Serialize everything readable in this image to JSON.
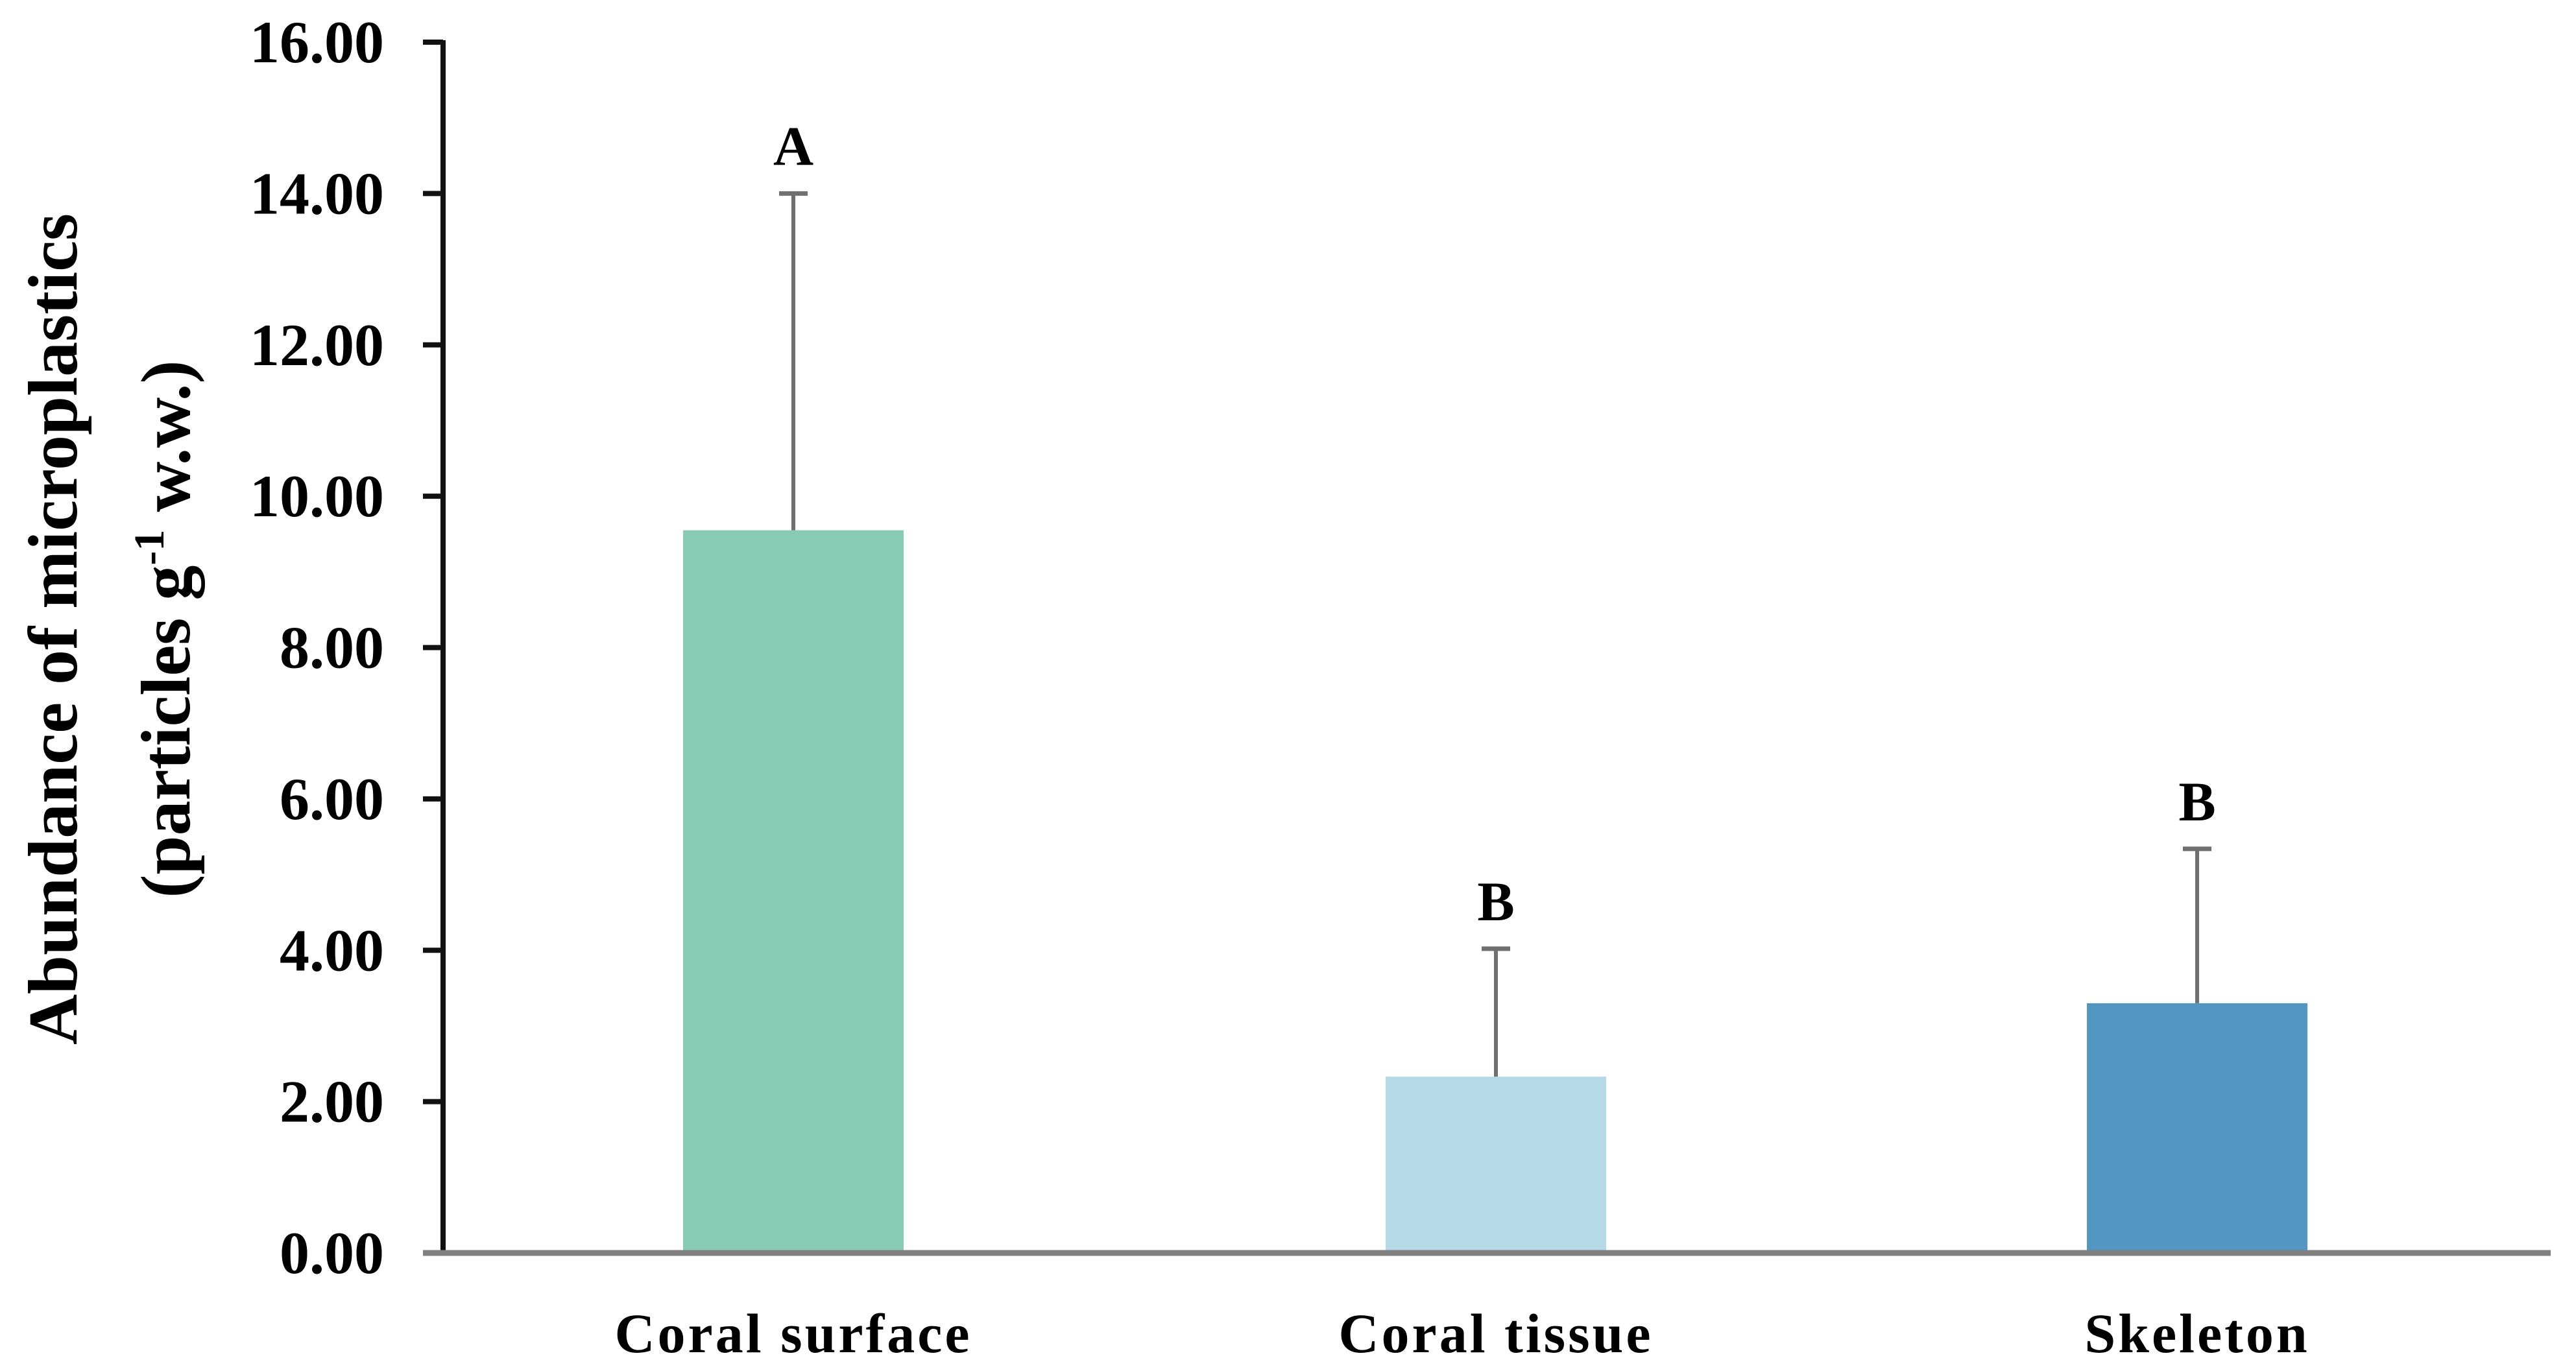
{
  "chart_data": {
    "type": "bar",
    "title": "",
    "xlabel": "",
    "ylabel": "Abundance of microplastics (particles g -1 w.w.)",
    "ylabel_line1": "Abundance of microplastics",
    "ylabel_line2_prefix": "(particles g",
    "ylabel_line2_sup": "-1",
    "ylabel_line2_suffix": " w.w.)",
    "ylim": [
      0,
      16
    ],
    "yticks": [
      "0.00",
      "2.00",
      "4.00",
      "6.00",
      "8.00",
      "10.00",
      "12.00",
      "14.00",
      "16.00"
    ],
    "grid": false,
    "legend": null,
    "categories": [
      "Coral surface",
      "Coral tissue",
      "Skeleton"
    ],
    "values": [
      9.55,
      2.33,
      3.3
    ],
    "error_upper": [
      14.0,
      4.02,
      5.34
    ],
    "error_sd": [
      4.45,
      1.69,
      2.04
    ],
    "significance_letters": [
      "A",
      "B",
      "B"
    ],
    "colors": [
      "#88CBB5",
      "#B6D9E8",
      "#5396C2"
    ]
  },
  "style": {
    "axis_color_y": "#111111",
    "axis_color_x": "#808080",
    "error_bar_color": "#707070"
  }
}
